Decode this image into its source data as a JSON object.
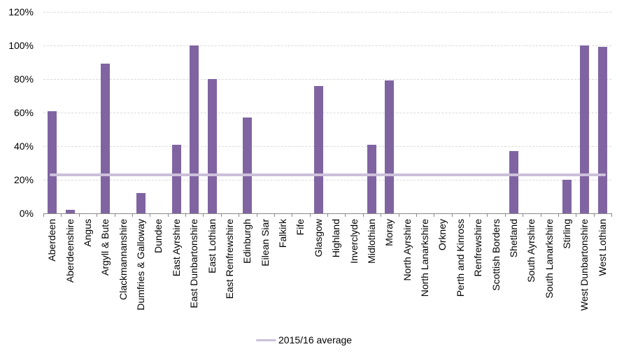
{
  "chart_data": {
    "type": "bar",
    "title": "",
    "xlabel": "",
    "ylabel": "",
    "categories": [
      "Aberdeen",
      "Aberdeenshire",
      "Angus",
      "Argyll & Bute",
      "Clackmannanshire",
      "Dumfries & Galloway",
      "Dundee",
      "East Ayrshire",
      "East Dunbartonshire",
      "East Lothian",
      "East Renfrewshire",
      "Edinburgh",
      "Eilean Siar",
      "Falkirk",
      "Fife",
      "Glasgow",
      "Highland",
      "Inverclyde",
      "Midlothian",
      "Moray",
      "North Ayrshire",
      "North Lanarkshire",
      "Orkney",
      "Perth and Kinross",
      "Renfrewshire",
      "Scottish Borders",
      "Shetland",
      "South Ayrshire",
      "South Lanarkshire",
      "Stirling",
      "West Dunbartonshire",
      "West Lothian"
    ],
    "values": [
      61,
      2,
      0,
      89,
      0,
      12,
      0,
      41,
      100,
      80,
      0,
      57,
      0,
      0,
      0,
      76,
      0,
      0,
      41,
      79,
      0,
      0,
      0,
      0,
      0,
      0,
      37,
      0,
      0,
      20,
      100,
      99
    ],
    "value_unit": "%",
    "ylim": [
      0,
      120
    ],
    "y_ticks": [
      0,
      20,
      40,
      60,
      80,
      100,
      120
    ],
    "y_tick_labels": [
      "0%",
      "20%",
      "40%",
      "60%",
      "80%",
      "100%",
      "120%"
    ],
    "grid": "horizontal-dashed",
    "average_line": {
      "label": "2015/16 average",
      "value": 23
    },
    "legend_position": "bottom-center",
    "colors": {
      "bar": "#8064A2",
      "average_line": "#CCC0DA",
      "gridline": "#D9D9D9",
      "axis": "#898989",
      "text": "#000000",
      "background": "#FFFFFF"
    }
  }
}
